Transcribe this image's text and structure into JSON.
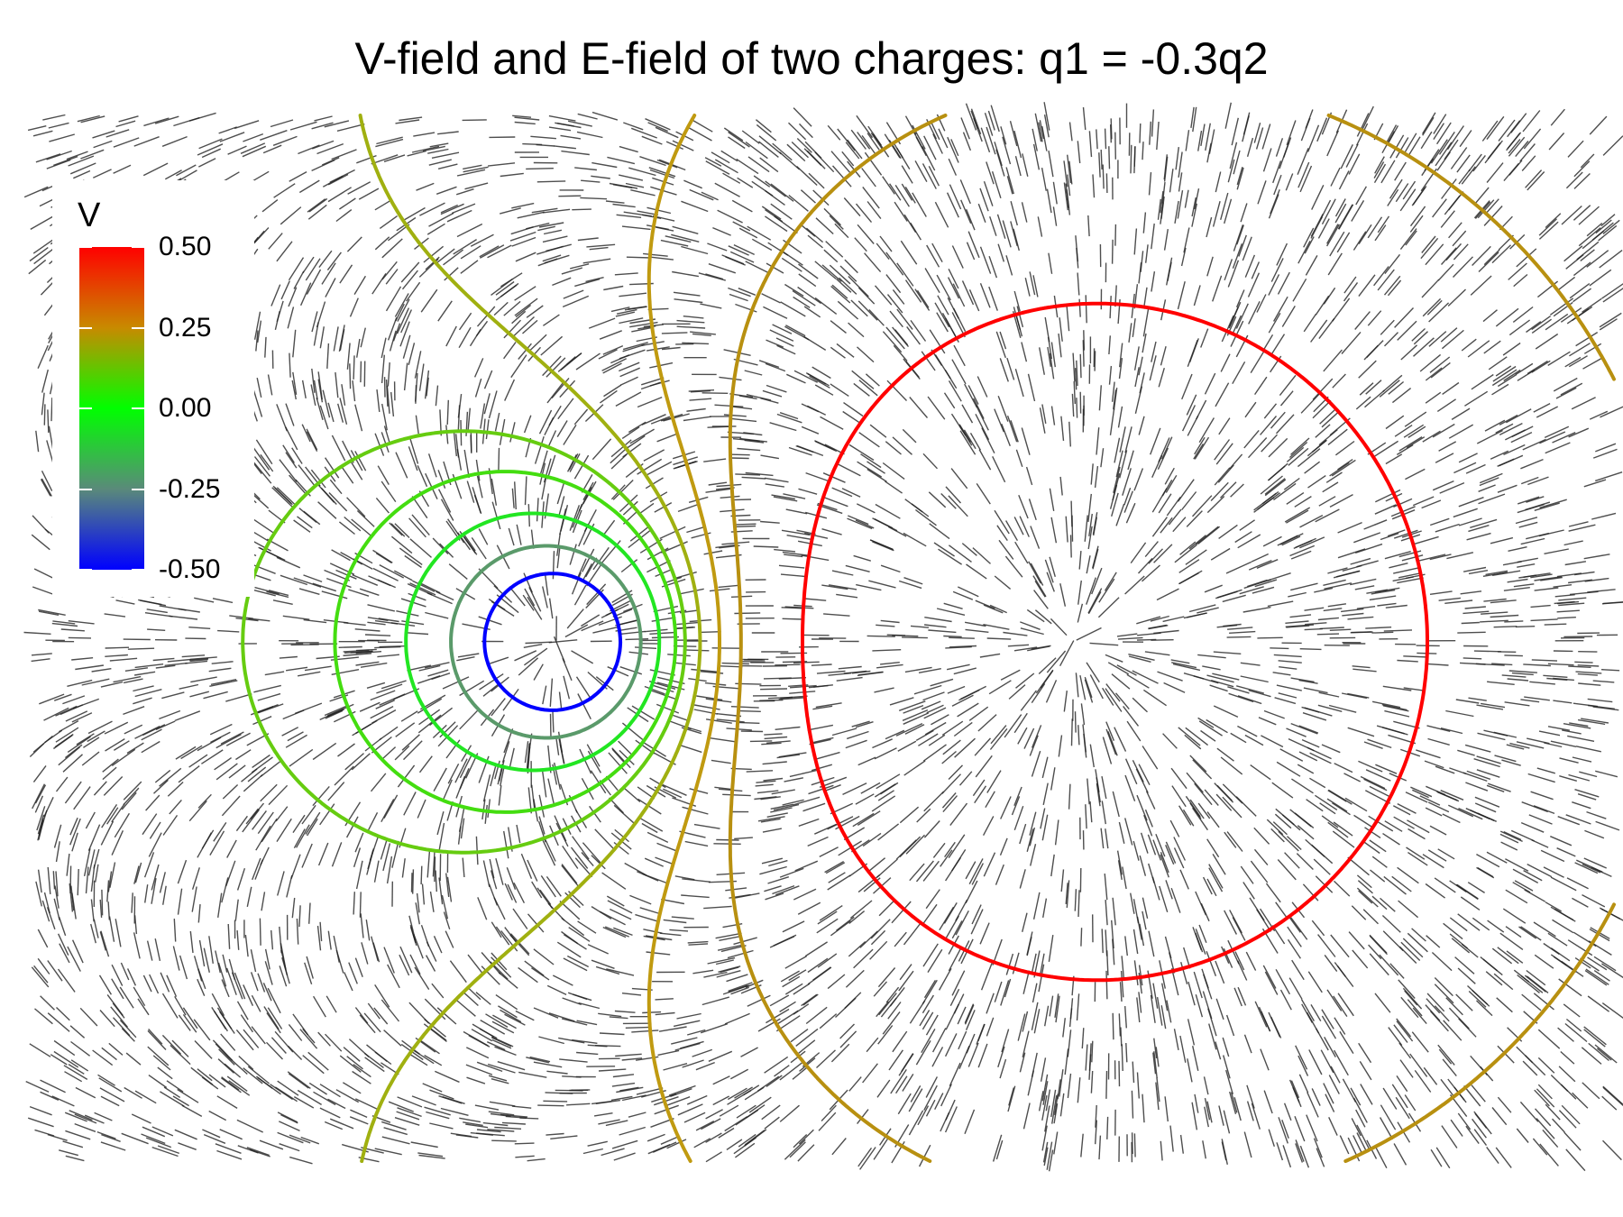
{
  "title": "V-field and E-field of two charges: q1 = -0.3q2",
  "legend": {
    "title": "V",
    "ticks": [
      {
        "value": 0.5,
        "label": "0.50"
      },
      {
        "value": 0.25,
        "label": "0.25"
      },
      {
        "value": 0.0,
        "label": "0.00"
      },
      {
        "value": -0.25,
        "label": "-0.25"
      },
      {
        "value": -0.5,
        "label": "-0.50"
      }
    ],
    "colors": {
      "high": "#ff0000",
      "mid_high": "#c88a00",
      "zero": "#00ff00",
      "mid_low": "#5a8a7a",
      "low": "#0000ff"
    }
  },
  "chart_data": {
    "type": "contour",
    "charges": [
      {
        "name": "q1",
        "x": -1.0,
        "y": 0.0,
        "q": -0.3
      },
      {
        "name": "q2",
        "x": 1.0,
        "y": 0.0,
        "q": 1.0
      }
    ],
    "xlim": [
      -1.95,
      2.0
    ],
    "ylim": [
      -1.25,
      1.25
    ],
    "field_segments": "short line segments showing E-field direction",
    "contour_levels": [
      {
        "level": -0.5,
        "color": "#0000ff"
      },
      {
        "level": -0.25,
        "color": "#5a9a6a"
      },
      {
        "level": -0.1,
        "color": "#22e622"
      },
      {
        "level": 0.0,
        "color": "#44dd10"
      },
      {
        "level": 0.05,
        "color": "#66cc10"
      },
      {
        "level": 0.12,
        "color": "#a0b010"
      },
      {
        "level": 0.2,
        "color": "#c09a10"
      },
      {
        "level": 0.28,
        "color": "#b89010"
      },
      {
        "level": 0.5,
        "color": "#ff0000"
      }
    ]
  }
}
